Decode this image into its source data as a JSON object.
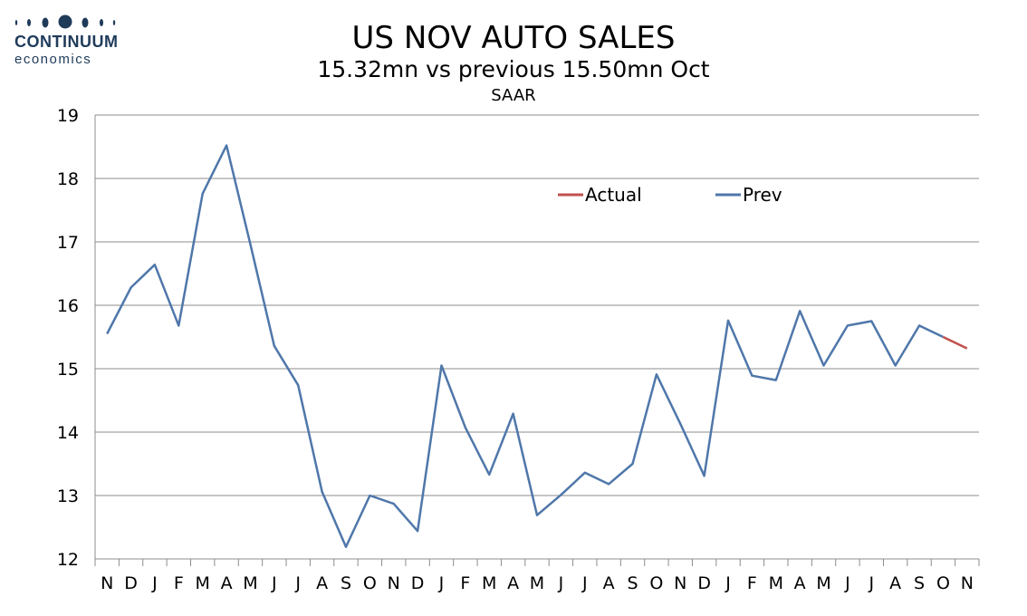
{
  "logo": {
    "name": "CONTINUUM",
    "sub": "economics"
  },
  "chart_data": {
    "type": "line",
    "title": "US NOV AUTO SALES",
    "subtitle": "15.32mn vs previous 15.50mn Oct",
    "subtitle2": "SAAR",
    "xlabel": "",
    "ylabel": "",
    "ylim": [
      12,
      19
    ],
    "yticks": [
      12,
      13,
      14,
      15,
      16,
      17,
      18,
      19
    ],
    "grid": true,
    "legend_position": "top-right",
    "categories": [
      "N",
      "D",
      "J",
      "F",
      "M",
      "A",
      "M",
      "J",
      "J",
      "A",
      "S",
      "O",
      "N",
      "D",
      "J",
      "F",
      "M",
      "A",
      "M",
      "J",
      "J",
      "A",
      "S",
      "O",
      "N",
      "D",
      "J",
      "F",
      "M",
      "A",
      "M",
      "J",
      "J",
      "A",
      "S",
      "O",
      "N"
    ],
    "series": [
      {
        "name": "Prev",
        "color": "#4f77aa",
        "values": [
          15.55,
          16.28,
          16.64,
          15.68,
          17.76,
          18.52,
          16.96,
          15.36,
          14.74,
          13.06,
          12.19,
          13.0,
          12.87,
          12.44,
          15.05,
          14.07,
          13.33,
          14.29,
          12.69,
          13.01,
          13.36,
          13.18,
          13.5,
          14.91,
          14.13,
          13.31,
          15.76,
          14.89,
          14.82,
          15.91,
          15.05,
          15.68,
          15.75,
          15.05,
          15.68,
          15.5,
          null
        ]
      },
      {
        "name": "Actual",
        "color": "#c0504d",
        "values": [
          null,
          null,
          null,
          null,
          null,
          null,
          null,
          null,
          null,
          null,
          null,
          null,
          null,
          null,
          null,
          null,
          null,
          null,
          null,
          null,
          null,
          null,
          null,
          null,
          null,
          null,
          null,
          null,
          null,
          null,
          null,
          null,
          null,
          null,
          null,
          15.5,
          15.32
        ]
      }
    ],
    "legend_order": [
      "Actual",
      "Prev"
    ]
  }
}
